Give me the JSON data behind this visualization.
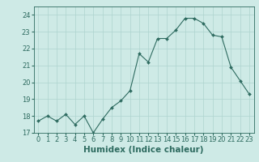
{
  "x": [
    0,
    1,
    2,
    3,
    4,
    5,
    6,
    7,
    8,
    9,
    10,
    11,
    12,
    13,
    14,
    15,
    16,
    17,
    18,
    19,
    20,
    21,
    22,
    23
  ],
  "y": [
    17.7,
    18.0,
    17.7,
    18.1,
    17.5,
    18.0,
    17.0,
    17.8,
    18.5,
    18.9,
    19.5,
    21.7,
    21.2,
    22.6,
    22.6,
    23.1,
    23.8,
    23.8,
    23.5,
    22.8,
    22.7,
    20.9,
    20.1,
    19.3
  ],
  "xlabel": "Humidex (Indice chaleur)",
  "ylim": [
    17,
    24.5
  ],
  "xlim": [
    -0.5,
    23.5
  ],
  "yticks": [
    17,
    18,
    19,
    20,
    21,
    22,
    23,
    24
  ],
  "xticks": [
    0,
    1,
    2,
    3,
    4,
    5,
    6,
    7,
    8,
    9,
    10,
    11,
    12,
    13,
    14,
    15,
    16,
    17,
    18,
    19,
    20,
    21,
    22,
    23
  ],
  "line_color": "#2e6b60",
  "marker_color": "#2e6b60",
  "bg_color": "#ceeae6",
  "grid_color": "#aed4cf",
  "tick_fontsize": 6,
  "xlabel_fontsize": 7.5
}
